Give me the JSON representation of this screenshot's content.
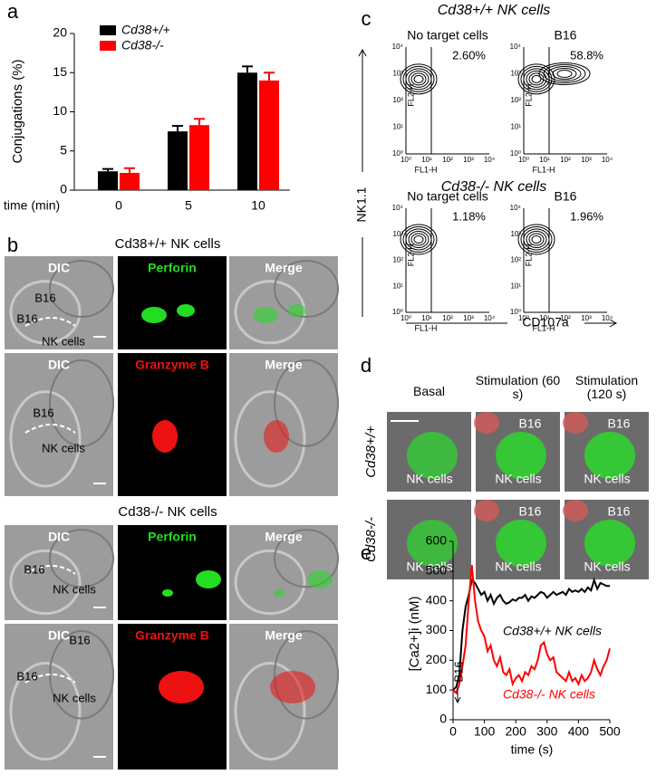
{
  "chart_data": [
    {
      "type": "bar",
      "label": "a",
      "ylabel": "Conjugations (%)",
      "xlabel": "time  (min)",
      "categories": [
        "0",
        "5",
        "10"
      ],
      "series": [
        {
          "name": "Cd38+/+",
          "color": "#000000",
          "values": [
            2.4,
            7.5,
            15.0
          ],
          "errors": [
            0.3,
            0.7,
            0.8
          ]
        },
        {
          "name": "Cd38-/-",
          "color": "#ff0000",
          "values": [
            2.2,
            8.3,
            14.0
          ],
          "errors": [
            0.6,
            0.8,
            1.0
          ]
        }
      ],
      "ylim": [
        0,
        20
      ],
      "yticks": [
        0,
        5,
        10,
        15,
        20
      ]
    },
    {
      "type": "line",
      "label": "e",
      "ylabel": "[Ca2+]i (nM)",
      "xlabel": "time (s)",
      "annotation": "B16",
      "x": [
        0,
        10,
        20,
        30,
        40,
        50,
        60,
        70,
        80,
        90,
        100,
        110,
        120,
        130,
        140,
        150,
        160,
        170,
        180,
        190,
        200,
        210,
        220,
        230,
        240,
        250,
        260,
        270,
        280,
        290,
        300,
        310,
        320,
        330,
        340,
        350,
        360,
        370,
        380,
        390,
        400,
        410,
        420,
        430,
        440,
        450,
        460,
        470,
        480,
        490,
        500
      ],
      "series": [
        {
          "name": "Cd38+/+ NK cells",
          "color": "#000000",
          "values": [
            100,
            110,
            150,
            300,
            380,
            420,
            470,
            460,
            440,
            420,
            430,
            400,
            420,
            390,
            410,
            420,
            400,
            390,
            395,
            405,
            400,
            410,
            410,
            420,
            400,
            415,
            410,
            420,
            430,
            425,
            410,
            420,
            430,
            420,
            425,
            430,
            420,
            440,
            430,
            435,
            430,
            440,
            430,
            445,
            435,
            470,
            440,
            460,
            455,
            450,
            450
          ]
        },
        {
          "name": "Cd38-/- NK cells",
          "color": "#ff0000",
          "values": [
            100,
            90,
            120,
            180,
            250,
            400,
            520,
            400,
            330,
            300,
            280,
            230,
            250,
            200,
            180,
            210,
            160,
            150,
            170,
            120,
            140,
            150,
            130,
            160,
            150,
            180,
            170,
            200,
            250,
            260,
            220,
            200,
            210,
            160,
            150,
            140,
            130,
            160,
            130,
            140,
            120,
            150,
            130,
            140,
            160,
            200,
            170,
            150,
            180,
            200,
            240
          ]
        }
      ],
      "xlim": [
        0,
        500
      ],
      "xticks": [
        0,
        100,
        200,
        300,
        400,
        500
      ],
      "ylim": [
        0,
        600
      ],
      "yticks": [
        0,
        100,
        200,
        300,
        400,
        500,
        600
      ]
    }
  ],
  "panel_b": {
    "label": "b",
    "groups": [
      {
        "title": "Cd38+/+ NK cells",
        "rows": [
          {
            "channels": [
              "DIC",
              "Perforin",
              "Merge"
            ],
            "cells": [
              "B16",
              "B16",
              "NK cells"
            ]
          },
          {
            "channels": [
              "DIC",
              "Granzyme B",
              "Merge"
            ],
            "cells": [
              "B16",
              "NK cells"
            ]
          }
        ]
      },
      {
        "title": "Cd38-/- NK cells",
        "rows": [
          {
            "channels": [
              "DIC",
              "Perforin",
              "Merge"
            ],
            "cells": [
              "B16",
              "NK cells"
            ]
          },
          {
            "channels": [
              "DIC",
              "Granzyme B",
              "Merge"
            ],
            "cells": [
              "B16",
              "B16",
              "NK cells"
            ]
          }
        ]
      }
    ]
  },
  "panel_c": {
    "label": "c",
    "ylabel": "NK1.1",
    "xlabel": "CD107a",
    "plot_ylabel": "FL2-H",
    "plot_xlabel": "FL1-H",
    "ticks": [
      "10⁰",
      "10¹",
      "10²",
      "10³",
      "10⁴"
    ],
    "groups": [
      {
        "title": "Cd38+/+ NK cells",
        "plots": [
          {
            "title": "No target cells",
            "percent": "2.60%"
          },
          {
            "title": "B16",
            "percent": "58.8%"
          }
        ]
      },
      {
        "title": "Cd38-/- NK cells",
        "plots": [
          {
            "title": "No target cells",
            "percent": "1.18%"
          },
          {
            "title": "B16",
            "percent": "1.96%"
          }
        ]
      }
    ]
  },
  "panel_d": {
    "label": "d",
    "columns": [
      "Basal",
      "Stimulation (60 s)",
      "Stimulation (120 s)"
    ],
    "rows": [
      {
        "label": "Cd38+/+",
        "cells": [
          [
            "NK cells"
          ],
          [
            "B16",
            "NK cells"
          ],
          [
            "B16",
            "NK cells"
          ]
        ]
      },
      {
        "label": "Cd38-/-",
        "cells": [
          [
            "NK cells"
          ],
          [
            "B16",
            "NK cells"
          ],
          [
            "B16",
            "NK cells"
          ]
        ]
      }
    ]
  }
}
